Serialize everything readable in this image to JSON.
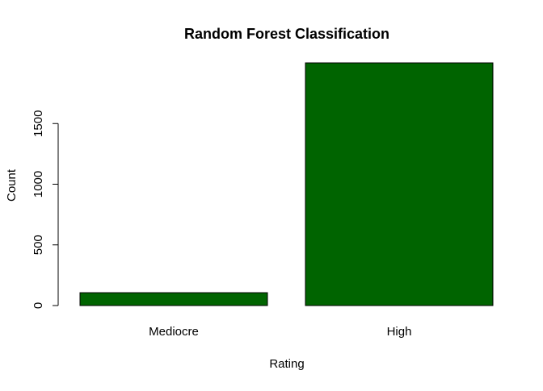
{
  "chart_data": {
    "type": "bar",
    "title": "Random Forest Classification",
    "xlabel": "Rating",
    "ylabel": "Count",
    "categories": [
      "Mediocre",
      "High"
    ],
    "values": [
      106,
      2000
    ],
    "ylim": [
      0,
      2000
    ],
    "yticks": [
      0,
      500,
      1000,
      1500
    ],
    "grid": false,
    "bar_color": "#006400",
    "bar_edge_color": "#000000"
  }
}
